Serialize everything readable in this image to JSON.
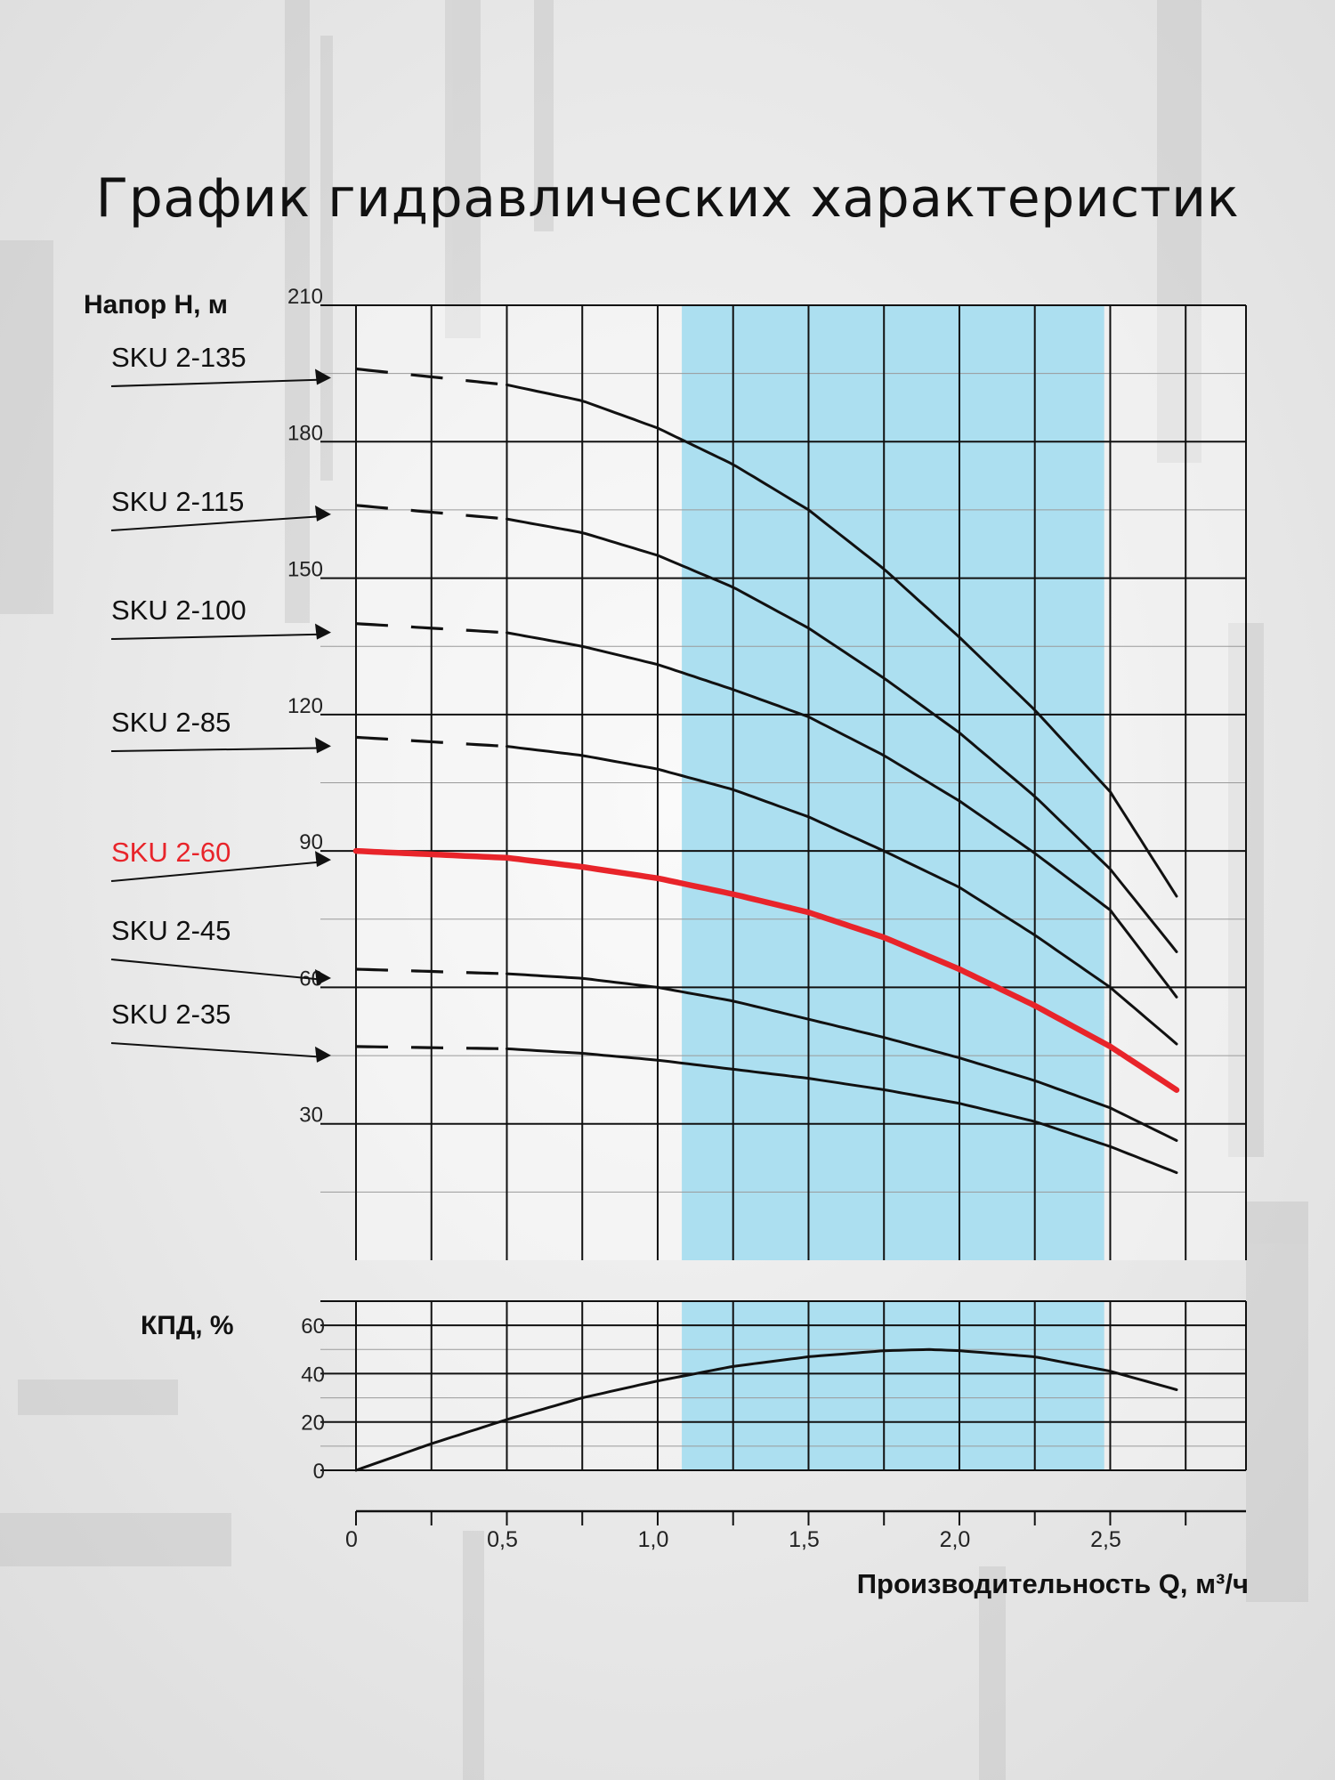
{
  "title": "График гидравлических характеристик",
  "colors": {
    "band": "#acdff0",
    "curve": "#111111",
    "highlight": "#e8242a"
  },
  "chart_data": [
    {
      "type": "line",
      "ylabel": "Напор H, м",
      "xlabel": "Производительность Q, м³/ч",
      "xlim": [
        0,
        2.95
      ],
      "ylim": [
        0,
        210
      ],
      "x_ticks": [
        "0",
        "0,5",
        "1,0",
        "1,5",
        "2,0",
        "2,5"
      ],
      "x_tick_values": [
        0,
        0.5,
        1.0,
        1.5,
        2.0,
        2.5
      ],
      "y_ticks": [
        30,
        60,
        90,
        120,
        150,
        180,
        210
      ],
      "grid": true,
      "shaded_range": [
        1.08,
        2.48
      ],
      "series": [
        {
          "name": "SKU 2-135",
          "dashed_until": 0.48,
          "x": [
            0,
            0.5,
            0.75,
            1.0,
            1.25,
            1.5,
            1.75,
            2.0,
            2.25,
            2.5,
            2.73
          ],
          "y": [
            196,
            192.5,
            189,
            183,
            175,
            165,
            152,
            137,
            121,
            103,
            79
          ]
        },
        {
          "name": "SKU 2-115",
          "dashed_until": 0.48,
          "x": [
            0,
            0.5,
            0.75,
            1.0,
            1.25,
            1.5,
            1.75,
            2.0,
            2.25,
            2.5,
            2.73
          ],
          "y": [
            166,
            163,
            160,
            155,
            148,
            139,
            128,
            116,
            102,
            86,
            67
          ]
        },
        {
          "name": "SKU 2-100",
          "dashed_until": 0.48,
          "x": [
            0,
            0.5,
            0.75,
            1.0,
            1.25,
            1.5,
            1.75,
            2.0,
            2.25,
            2.5,
            2.73
          ],
          "y": [
            140,
            138,
            135,
            131,
            125.5,
            119.5,
            111,
            101,
            89.5,
            77,
            57
          ]
        },
        {
          "name": "SKU 2-85",
          "dashed_until": 0.48,
          "x": [
            0,
            0.5,
            0.75,
            1.0,
            1.25,
            1.5,
            1.75,
            2.0,
            2.25,
            2.5,
            2.73
          ],
          "y": [
            115,
            113,
            111,
            108,
            103.5,
            97.5,
            90,
            82,
            71.5,
            60,
            47
          ]
        },
        {
          "name": "SKU 2-60",
          "highlight": true,
          "x": [
            0,
            0.5,
            0.75,
            1.0,
            1.25,
            1.5,
            1.75,
            2.0,
            2.25,
            2.5,
            2.73
          ],
          "y": [
            90,
            88.5,
            86.5,
            84,
            80.5,
            76.5,
            71,
            64,
            56,
            47,
            37
          ]
        },
        {
          "name": "SKU 2-45",
          "dashed_until": 0.48,
          "x": [
            0,
            0.5,
            0.75,
            1.0,
            1.25,
            1.5,
            1.75,
            2.0,
            2.25,
            2.5,
            2.73
          ],
          "y": [
            64,
            63,
            62,
            60,
            57,
            53,
            49,
            44.5,
            39.5,
            33.5,
            26
          ]
        },
        {
          "name": "SKU 2-35",
          "dashed_until": 0.48,
          "x": [
            0,
            0.5,
            0.75,
            1.0,
            1.25,
            1.5,
            1.75,
            2.0,
            2.25,
            2.5,
            2.73
          ],
          "y": [
            47,
            46.5,
            45.5,
            44,
            42,
            40,
            37.5,
            34.5,
            30.5,
            25,
            19
          ]
        }
      ]
    },
    {
      "type": "line",
      "ylabel": "КПД, %",
      "xlim": [
        0,
        2.95
      ],
      "ylim": [
        0,
        70
      ],
      "y_ticks": [
        0,
        20,
        40,
        60
      ],
      "grid": true,
      "shaded_range": [
        1.08,
        2.48
      ],
      "series": [
        {
          "x": [
            0,
            0.25,
            0.5,
            0.75,
            1.0,
            1.25,
            1.5,
            1.75,
            1.9,
            2.0,
            2.25,
            2.5,
            2.73
          ],
          "y": [
            0,
            11,
            21,
            30,
            37,
            43,
            47,
            49.5,
            50,
            49.5,
            47,
            41,
            33
          ]
        }
      ]
    }
  ]
}
